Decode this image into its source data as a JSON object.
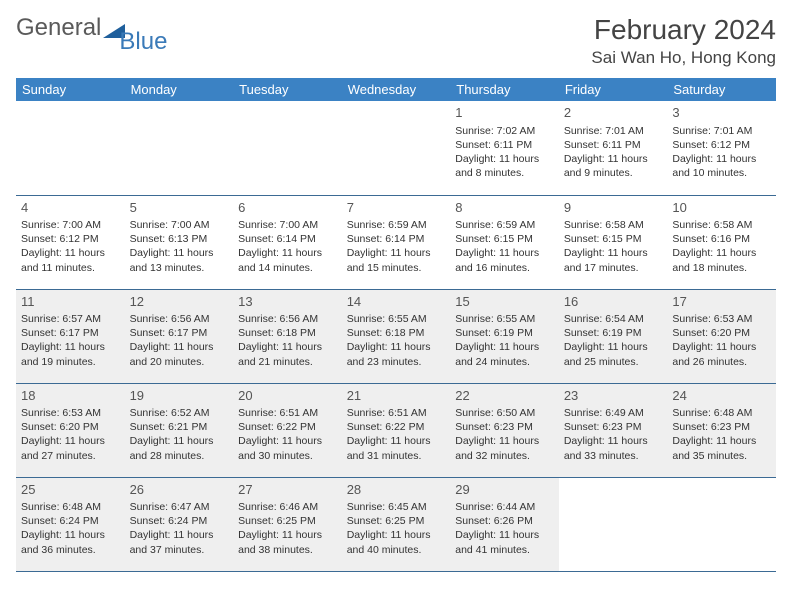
{
  "logo": {
    "text1": "General",
    "text2": "Blue"
  },
  "title": "February 2024",
  "location": "Sai Wan Ho, Hong Kong",
  "colors": {
    "header_bg": "#3b82c4",
    "header_fg": "#ffffff",
    "rule": "#3b6a94",
    "shaded_bg": "#efefef",
    "logo_accent": "#1f5f9c"
  },
  "weekdays": [
    "Sunday",
    "Monday",
    "Tuesday",
    "Wednesday",
    "Thursday",
    "Friday",
    "Saturday"
  ],
  "weeks": [
    [
      null,
      null,
      null,
      null,
      {
        "n": "1",
        "sr": "7:02 AM",
        "ss": "6:11 PM",
        "dl": "11 hours and 8 minutes."
      },
      {
        "n": "2",
        "sr": "7:01 AM",
        "ss": "6:11 PM",
        "dl": "11 hours and 9 minutes."
      },
      {
        "n": "3",
        "sr": "7:01 AM",
        "ss": "6:12 PM",
        "dl": "11 hours and 10 minutes."
      }
    ],
    [
      {
        "n": "4",
        "sr": "7:00 AM",
        "ss": "6:12 PM",
        "dl": "11 hours and 11 minutes."
      },
      {
        "n": "5",
        "sr": "7:00 AM",
        "ss": "6:13 PM",
        "dl": "11 hours and 13 minutes."
      },
      {
        "n": "6",
        "sr": "7:00 AM",
        "ss": "6:14 PM",
        "dl": "11 hours and 14 minutes."
      },
      {
        "n": "7",
        "sr": "6:59 AM",
        "ss": "6:14 PM",
        "dl": "11 hours and 15 minutes."
      },
      {
        "n": "8",
        "sr": "6:59 AM",
        "ss": "6:15 PM",
        "dl": "11 hours and 16 minutes."
      },
      {
        "n": "9",
        "sr": "6:58 AM",
        "ss": "6:15 PM",
        "dl": "11 hours and 17 minutes."
      },
      {
        "n": "10",
        "sr": "6:58 AM",
        "ss": "6:16 PM",
        "dl": "11 hours and 18 minutes."
      }
    ],
    [
      {
        "n": "11",
        "sr": "6:57 AM",
        "ss": "6:17 PM",
        "dl": "11 hours and 19 minutes.",
        "s": true
      },
      {
        "n": "12",
        "sr": "6:56 AM",
        "ss": "6:17 PM",
        "dl": "11 hours and 20 minutes.",
        "s": true
      },
      {
        "n": "13",
        "sr": "6:56 AM",
        "ss": "6:18 PM",
        "dl": "11 hours and 21 minutes.",
        "s": true
      },
      {
        "n": "14",
        "sr": "6:55 AM",
        "ss": "6:18 PM",
        "dl": "11 hours and 23 minutes.",
        "s": true
      },
      {
        "n": "15",
        "sr": "6:55 AM",
        "ss": "6:19 PM",
        "dl": "11 hours and 24 minutes.",
        "s": true
      },
      {
        "n": "16",
        "sr": "6:54 AM",
        "ss": "6:19 PM",
        "dl": "11 hours and 25 minutes.",
        "s": true
      },
      {
        "n": "17",
        "sr": "6:53 AM",
        "ss": "6:20 PM",
        "dl": "11 hours and 26 minutes.",
        "s": true
      }
    ],
    [
      {
        "n": "18",
        "sr": "6:53 AM",
        "ss": "6:20 PM",
        "dl": "11 hours and 27 minutes.",
        "s": true
      },
      {
        "n": "19",
        "sr": "6:52 AM",
        "ss": "6:21 PM",
        "dl": "11 hours and 28 minutes.",
        "s": true
      },
      {
        "n": "20",
        "sr": "6:51 AM",
        "ss": "6:22 PM",
        "dl": "11 hours and 30 minutes.",
        "s": true
      },
      {
        "n": "21",
        "sr": "6:51 AM",
        "ss": "6:22 PM",
        "dl": "11 hours and 31 minutes.",
        "s": true
      },
      {
        "n": "22",
        "sr": "6:50 AM",
        "ss": "6:23 PM",
        "dl": "11 hours and 32 minutes.",
        "s": true
      },
      {
        "n": "23",
        "sr": "6:49 AM",
        "ss": "6:23 PM",
        "dl": "11 hours and 33 minutes.",
        "s": true
      },
      {
        "n": "24",
        "sr": "6:48 AM",
        "ss": "6:23 PM",
        "dl": "11 hours and 35 minutes.",
        "s": true
      }
    ],
    [
      {
        "n": "25",
        "sr": "6:48 AM",
        "ss": "6:24 PM",
        "dl": "11 hours and 36 minutes.",
        "s": true
      },
      {
        "n": "26",
        "sr": "6:47 AM",
        "ss": "6:24 PM",
        "dl": "11 hours and 37 minutes.",
        "s": true
      },
      {
        "n": "27",
        "sr": "6:46 AM",
        "ss": "6:25 PM",
        "dl": "11 hours and 38 minutes.",
        "s": true
      },
      {
        "n": "28",
        "sr": "6:45 AM",
        "ss": "6:25 PM",
        "dl": "11 hours and 40 minutes.",
        "s": true
      },
      {
        "n": "29",
        "sr": "6:44 AM",
        "ss": "6:26 PM",
        "dl": "11 hours and 41 minutes.",
        "s": true
      },
      null,
      null
    ]
  ],
  "labels": {
    "sunrise": "Sunrise:",
    "sunset": "Sunset:",
    "daylight": "Daylight:"
  }
}
